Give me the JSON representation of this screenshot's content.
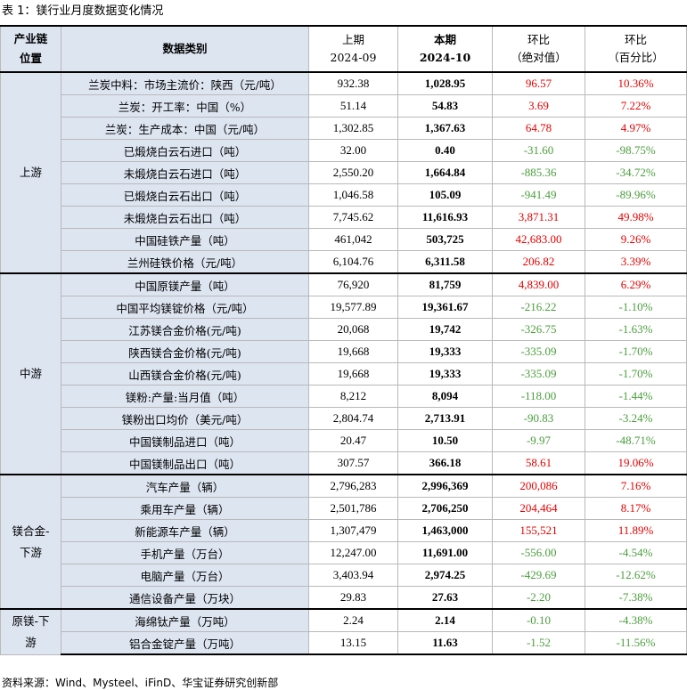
{
  "title": "表 1：镁行业月度数据变化情况",
  "header": {
    "position": "产业链\n位置",
    "category": "数据类别",
    "prev_label": "上期",
    "prev_period": "2024-09",
    "curr_label": "本期",
    "curr_period": "2024-10",
    "abs_label": "环比",
    "abs_sub": "（绝对值）",
    "pct_label": "环比",
    "pct_sub": "（百分比）"
  },
  "groups": [
    {
      "position": "上游",
      "rows": [
        {
          "cat": "兰炭中料：市场主流价：陕西（元/吨）",
          "prev": "932.38",
          "curr": "1,028.95",
          "abs": "96.57",
          "pct": "10.36%",
          "dir": "up"
        },
        {
          "cat": "兰炭：开工率：中国（%）",
          "prev": "51.14",
          "curr": "54.83",
          "abs": "3.69",
          "pct": "7.22%",
          "dir": "up"
        },
        {
          "cat": "兰炭：生产成本：中国（元/吨）",
          "prev": "1,302.85",
          "curr": "1,367.63",
          "abs": "64.78",
          "pct": "4.97%",
          "dir": "up"
        },
        {
          "cat": "已煅烧白云石进口（吨）",
          "prev": "32.00",
          "curr": "0.40",
          "abs": "-31.60",
          "pct": "-98.75%",
          "dir": "down"
        },
        {
          "cat": "未煅烧白云石进口（吨）",
          "prev": "2,550.20",
          "curr": "1,664.84",
          "abs": "-885.36",
          "pct": "-34.72%",
          "dir": "down"
        },
        {
          "cat": "已煅烧白云石出口（吨）",
          "prev": "1,046.58",
          "curr": "105.09",
          "abs": "-941.49",
          "pct": "-89.96%",
          "dir": "down"
        },
        {
          "cat": "未煅烧白云石出口（吨）",
          "prev": "7,745.62",
          "curr": "11,616.93",
          "abs": "3,871.31",
          "pct": "49.98%",
          "dir": "up"
        },
        {
          "cat": "中国硅铁产量（吨）",
          "prev": "461,042",
          "curr": "503,725",
          "abs": "42,683.00",
          "pct": "9.26%",
          "dir": "up"
        },
        {
          "cat": "兰州硅铁价格（元/吨）",
          "prev": "6,104.76",
          "curr": "6,311.58",
          "abs": "206.82",
          "pct": "3.39%",
          "dir": "up"
        }
      ]
    },
    {
      "position": "中游",
      "rows": [
        {
          "cat": "中国原镁产量（吨）",
          "prev": "76,920",
          "curr": "81,759",
          "abs": "4,839.00",
          "pct": "6.29%",
          "dir": "up"
        },
        {
          "cat": "中国平均镁锭价格（元/吨）",
          "prev": "19,577.89",
          "curr": "19,361.67",
          "abs": "-216.22",
          "pct": "-1.10%",
          "dir": "down"
        },
        {
          "cat": "江苏镁合金价格(元/吨)",
          "prev": "20,068",
          "curr": "19,742",
          "abs": "-326.75",
          "pct": "-1.63%",
          "dir": "down"
        },
        {
          "cat": "陕西镁合金价格(元/吨)",
          "prev": "19,668",
          "curr": "19,333",
          "abs": "-335.09",
          "pct": "-1.70%",
          "dir": "down"
        },
        {
          "cat": "山西镁合金价格(元/吨)",
          "prev": "19,668",
          "curr": "19,333",
          "abs": "-335.09",
          "pct": "-1.70%",
          "dir": "down"
        },
        {
          "cat": "镁粉:产量:当月值（吨）",
          "prev": "8,212",
          "curr": "8,094",
          "abs": "-118.00",
          "pct": "-1.44%",
          "dir": "down"
        },
        {
          "cat": "镁粉出口均价（美元/吨）",
          "prev": "2,804.74",
          "curr": "2,713.91",
          "abs": "-90.83",
          "pct": "-3.24%",
          "dir": "down"
        },
        {
          "cat": "中国镁制品进口（吨）",
          "prev": "20.47",
          "curr": "10.50",
          "abs": "-9.97",
          "pct": "-48.71%",
          "dir": "down"
        },
        {
          "cat": "中国镁制品出口（吨）",
          "prev": "307.57",
          "curr": "366.18",
          "abs": "58.61",
          "pct": "19.06%",
          "dir": "up"
        }
      ]
    },
    {
      "position": "镁合金-\n下游",
      "rows": [
        {
          "cat": "汽车产量（辆）",
          "prev": "2,796,283",
          "curr": "2,996,369",
          "abs": "200,086",
          "pct": "7.16%",
          "dir": "up"
        },
        {
          "cat": "乘用车产量（辆）",
          "prev": "2,501,786",
          "curr": "2,706,250",
          "abs": "204,464",
          "pct": "8.17%",
          "dir": "up"
        },
        {
          "cat": "新能源车产量（辆）",
          "prev": "1,307,479",
          "curr": "1,463,000",
          "abs": "155,521",
          "pct": "11.89%",
          "dir": "up"
        },
        {
          "cat": "手机产量（万台）",
          "prev": "12,247.00",
          "curr": "11,691.00",
          "abs": "-556.00",
          "pct": "-4.54%",
          "dir": "down"
        },
        {
          "cat": "电脑产量（万台）",
          "prev": "3,403.94",
          "curr": "2,974.25",
          "abs": "-429.69",
          "pct": "-12.62%",
          "dir": "down"
        },
        {
          "cat": "通信设备产量（万块）",
          "prev": "29.83",
          "curr": "27.63",
          "abs": "-2.20",
          "pct": "-7.38%",
          "dir": "down"
        }
      ]
    },
    {
      "position": "原镁-下\n游",
      "rows": [
        {
          "cat": "海绵钛产量（万吨）",
          "prev": "2.24",
          "curr": "2.14",
          "abs": "-0.10",
          "pct": "-4.38%",
          "dir": "down"
        },
        {
          "cat": "铝合金锭产量（万吨）",
          "prev": "13.15",
          "curr": "11.63",
          "abs": "-1.52",
          "pct": "-11.56%",
          "dir": "down"
        }
      ]
    }
  ],
  "source": "资料来源：Wind、Mysteel、iFinD、华宝证券研究创新部",
  "colors": {
    "up": "#e60000",
    "down": "#4a9e3c",
    "shade": "#dde5f1"
  }
}
